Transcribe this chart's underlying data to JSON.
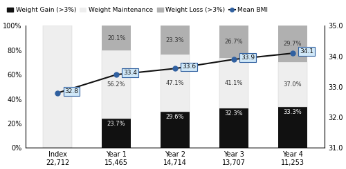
{
  "categories": [
    "Index\n22,712",
    "Year 1\n15,465",
    "Year 2\n14,714",
    "Year 3\n13,707",
    "Year 4\n11,253"
  ],
  "weight_gain": [
    0,
    23.7,
    29.6,
    32.3,
    33.3
  ],
  "weight_maintain": [
    100,
    56.2,
    47.1,
    41.1,
    37.0
  ],
  "weight_loss": [
    0,
    20.1,
    23.3,
    26.7,
    29.7
  ],
  "bmi_values": [
    32.8,
    33.4,
    33.6,
    33.9,
    34.1
  ],
  "bmi_x_positions": [
    0,
    1,
    2,
    3,
    4
  ],
  "gain_labels": [
    "",
    "23.7%",
    "29.6%",
    "32.3%",
    "33.3%"
  ],
  "maintain_labels": [
    "",
    "56.2%",
    "47.1%",
    "41.1%",
    "37.0%"
  ],
  "loss_labels": [
    "",
    "20.1%",
    "23.3%",
    "26.7%",
    "29.7%"
  ],
  "bmi_labels": [
    "32.8",
    "33.4",
    "33.6",
    "33.9",
    "34.1"
  ],
  "color_gain": "#111111",
  "color_maintain": "#eeeeee",
  "color_loss": "#b0b0b0",
  "color_bmi_line": "#111111",
  "color_bmi_marker_face": "#3060a0",
  "color_bmi_marker_edge": "#3060a0",
  "color_bmi_label_bg": "#d0e8f8",
  "color_bmi_label_edge": "#3060a0",
  "ylim_left": [
    0,
    100
  ],
  "ylim_right": [
    31.0,
    35.0
  ],
  "yticks_left": [
    0,
    20,
    40,
    60,
    80,
    100
  ],
  "yticks_right": [
    31.0,
    32.0,
    33.0,
    34.0,
    35.0
  ],
  "ylabel_left_labels": [
    "0%",
    "20%",
    "40%",
    "60%",
    "80%",
    "100%"
  ],
  "ylabel_right_labels": [
    "31.0",
    "32.0",
    "33.0",
    "34.0",
    "35.0"
  ],
  "legend_labels": [
    "Weight Gain (>3%)",
    "Weight Maintenance",
    "Weight Loss (>3%)",
    "Mean BMI"
  ],
  "bar_width": 0.5,
  "figsize": [
    5.0,
    2.45
  ],
  "dpi": 100
}
